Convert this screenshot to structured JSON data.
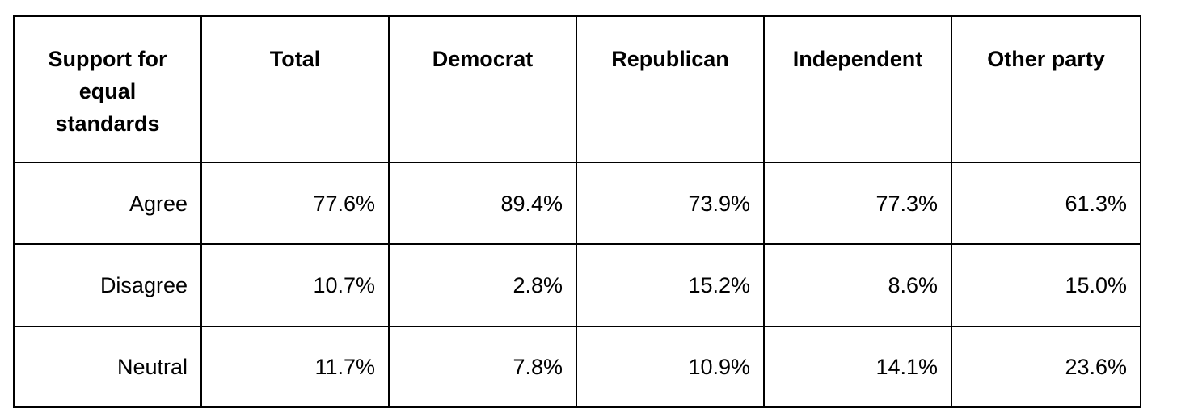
{
  "table": {
    "headers": [
      "Support for equal standards",
      "Total",
      "Democrat",
      "Republican",
      "Independent",
      "Other party"
    ],
    "rows": [
      {
        "label": "Agree",
        "values": [
          "77.6%",
          "89.4%",
          "73.9%",
          "77.3%",
          "61.3%"
        ]
      },
      {
        "label": "Disagree",
        "values": [
          "10.7%",
          "2.8%",
          "15.2%",
          "8.6%",
          "15.0%"
        ]
      },
      {
        "label": "Neutral",
        "values": [
          "11.7%",
          "7.8%",
          "10.9%",
          "14.1%",
          "23.6%"
        ]
      }
    ]
  }
}
